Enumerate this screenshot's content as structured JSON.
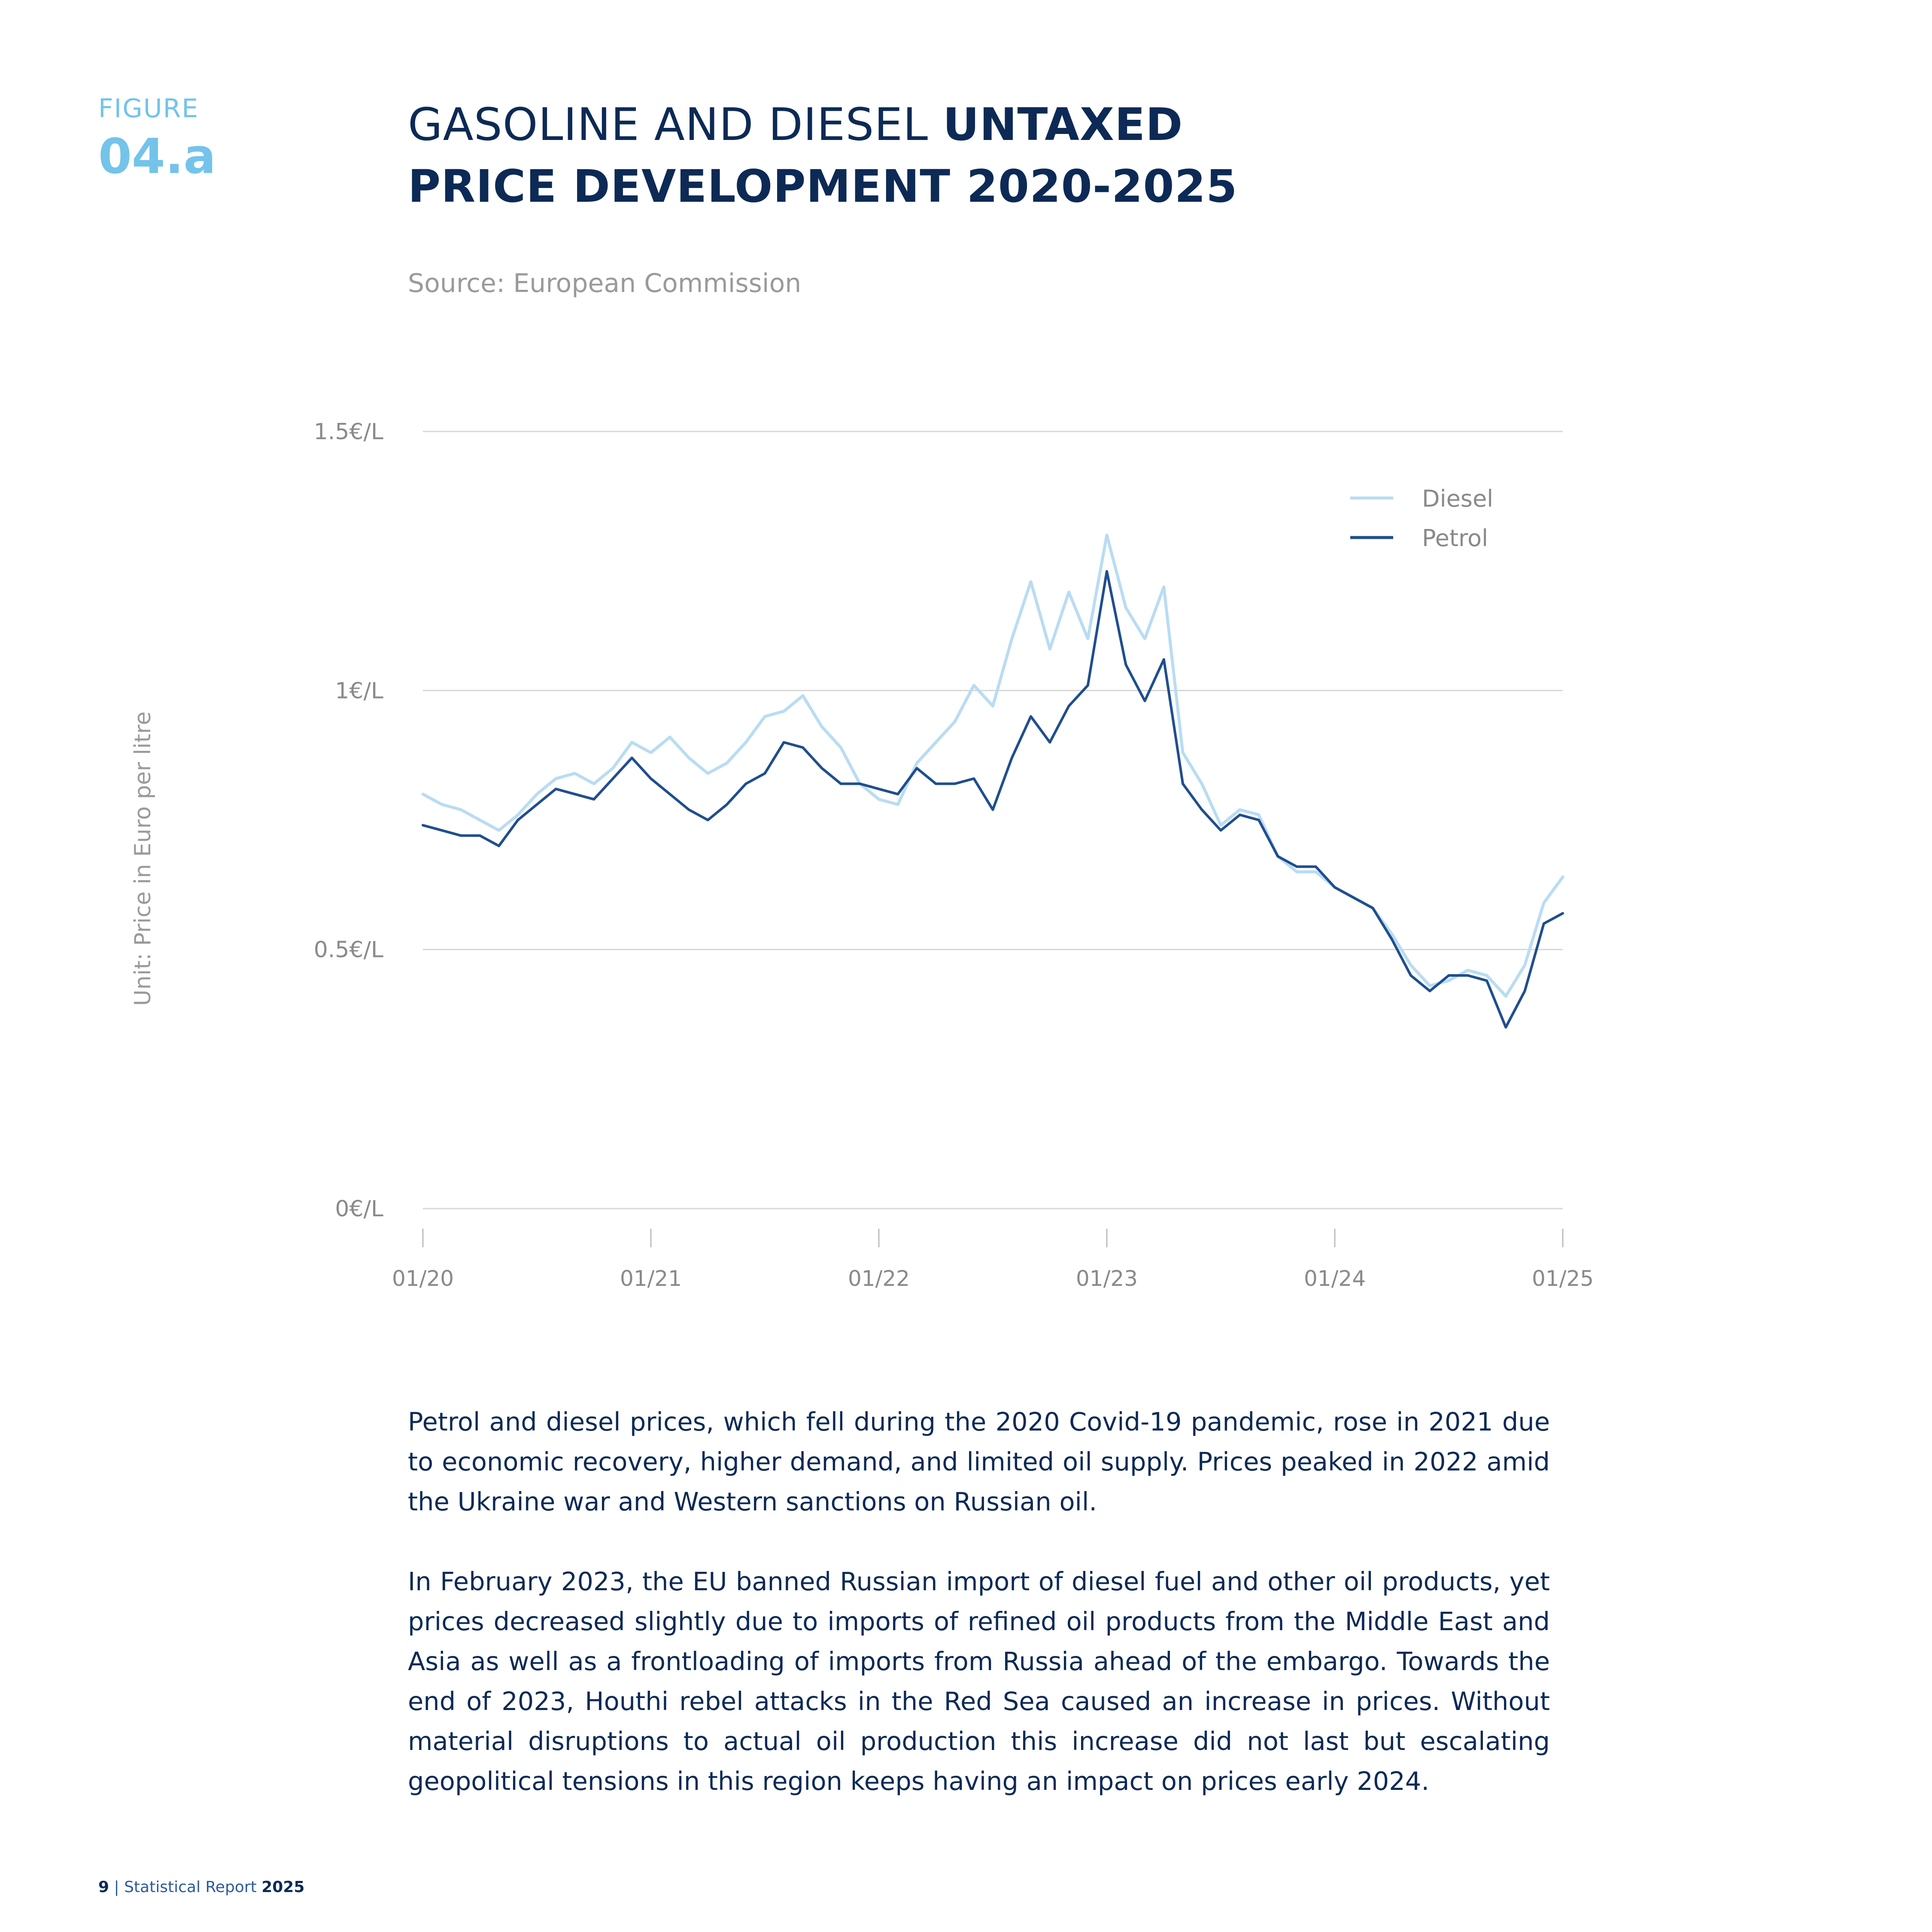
{
  "figure": {
    "label": "FIGURE",
    "number": "04.a"
  },
  "title": {
    "part1": "GASOLINE AND DIESEL ",
    "part2": "UNTAXED",
    "part3": "PRICE DEVELOPMENT 2020-2025"
  },
  "source": "Source: European Commission",
  "chart_data": {
    "type": "line",
    "title": "GASOLINE AND DIESEL UNTAXED PRICE DEVELOPMENT 2020-2025",
    "ylabel": "Unit: Price in Euro per litre",
    "xlabel": "",
    "ylim": [
      0,
      1.5
    ],
    "xlim": [
      "2020-01",
      "2025-01"
    ],
    "y_ticks": [
      {
        "value": 0,
        "label": "0€/L"
      },
      {
        "value": 0.5,
        "label": "0.5€/L"
      },
      {
        "value": 1,
        "label": "1€/L"
      },
      {
        "value": 1.5,
        "label": "1.5€/L"
      }
    ],
    "x_ticks": [
      {
        "value": "2020-01",
        "label": "01/20"
      },
      {
        "value": "2021-01",
        "label": "01/21"
      },
      {
        "value": "2022-01",
        "label": "01/22"
      },
      {
        "value": "2023-01",
        "label": "01/23"
      },
      {
        "value": "2024-01",
        "label": "01/24"
      },
      {
        "value": "2025-01",
        "label": "01/25"
      }
    ],
    "grid": true,
    "legend_position": "top-right",
    "series": [
      {
        "name": "Diesel",
        "color": "#b9dcf3",
        "points": [
          [
            "2020-01",
            0.8
          ],
          [
            "2020-02",
            0.78
          ],
          [
            "2020-03",
            0.77
          ],
          [
            "2020-04",
            0.75
          ],
          [
            "2020-05",
            0.73
          ],
          [
            "2020-06",
            0.76
          ],
          [
            "2020-07",
            0.8
          ],
          [
            "2020-08",
            0.83
          ],
          [
            "2020-09",
            0.84
          ],
          [
            "2020-10",
            0.82
          ],
          [
            "2020-11",
            0.85
          ],
          [
            "2020-12",
            0.9
          ],
          [
            "2021-01",
            0.88
          ],
          [
            "2021-02",
            0.91
          ],
          [
            "2021-03",
            0.87
          ],
          [
            "2021-04",
            0.84
          ],
          [
            "2021-05",
            0.86
          ],
          [
            "2021-06",
            0.9
          ],
          [
            "2021-07",
            0.95
          ],
          [
            "2021-08",
            0.96
          ],
          [
            "2021-09",
            0.99
          ],
          [
            "2021-10",
            0.93
          ],
          [
            "2021-11",
            0.89
          ],
          [
            "2021-12",
            0.82
          ],
          [
            "2022-01",
            0.79
          ],
          [
            "2022-02",
            0.78
          ],
          [
            "2022-03",
            0.86
          ],
          [
            "2022-04",
            0.9
          ],
          [
            "2022-05",
            0.94
          ],
          [
            "2022-06",
            1.01
          ],
          [
            "2022-07",
            0.97
          ],
          [
            "2022-08",
            1.1
          ],
          [
            "2022-09",
            1.21
          ],
          [
            "2022-10",
            1.08
          ],
          [
            "2022-11",
            1.19
          ],
          [
            "2022-12",
            1.1
          ],
          [
            "2023-01",
            1.3
          ],
          [
            "2023-02",
            1.16
          ],
          [
            "2023-03",
            1.1
          ],
          [
            "2023-04",
            1.2
          ],
          [
            "2023-05",
            0.88
          ],
          [
            "2023-06",
            0.82
          ],
          [
            "2023-07",
            0.74
          ],
          [
            "2023-08",
            0.77
          ],
          [
            "2023-09",
            0.76
          ],
          [
            "2023-10",
            0.68
          ],
          [
            "2023-11",
            0.65
          ],
          [
            "2023-12",
            0.65
          ],
          [
            "2024-01",
            0.62
          ],
          [
            "2024-02",
            0.6
          ],
          [
            "2024-03",
            0.58
          ],
          [
            "2024-04",
            0.53
          ],
          [
            "2024-05",
            0.47
          ],
          [
            "2024-06",
            0.43
          ],
          [
            "2024-07",
            0.44
          ],
          [
            "2024-08",
            0.46
          ],
          [
            "2024-09",
            0.45
          ],
          [
            "2024-10",
            0.41
          ],
          [
            "2024-11",
            0.47
          ],
          [
            "2024-12",
            0.59
          ],
          [
            "2025-01",
            0.64
          ]
        ]
      },
      {
        "name": "Petrol",
        "color": "#1f4e8f",
        "points": [
          [
            "2020-01",
            0.74
          ],
          [
            "2020-02",
            0.73
          ],
          [
            "2020-03",
            0.72
          ],
          [
            "2020-04",
            0.72
          ],
          [
            "2020-05",
            0.7
          ],
          [
            "2020-06",
            0.75
          ],
          [
            "2020-07",
            0.78
          ],
          [
            "2020-08",
            0.81
          ],
          [
            "2020-09",
            0.8
          ],
          [
            "2020-10",
            0.79
          ],
          [
            "2020-11",
            0.83
          ],
          [
            "2020-12",
            0.87
          ],
          [
            "2021-01",
            0.83
          ],
          [
            "2021-02",
            0.8
          ],
          [
            "2021-03",
            0.77
          ],
          [
            "2021-04",
            0.75
          ],
          [
            "2021-05",
            0.78
          ],
          [
            "2021-06",
            0.82
          ],
          [
            "2021-07",
            0.84
          ],
          [
            "2021-08",
            0.9
          ],
          [
            "2021-09",
            0.89
          ],
          [
            "2021-10",
            0.85
          ],
          [
            "2021-11",
            0.82
          ],
          [
            "2021-12",
            0.82
          ],
          [
            "2022-01",
            0.81
          ],
          [
            "2022-02",
            0.8
          ],
          [
            "2022-03",
            0.85
          ],
          [
            "2022-04",
            0.82
          ],
          [
            "2022-05",
            0.82
          ],
          [
            "2022-06",
            0.83
          ],
          [
            "2022-07",
            0.77
          ],
          [
            "2022-08",
            0.87
          ],
          [
            "2022-09",
            0.95
          ],
          [
            "2022-10",
            0.9
          ],
          [
            "2022-11",
            0.97
          ],
          [
            "2022-12",
            1.01
          ],
          [
            "2023-01",
            1.23
          ],
          [
            "2023-02",
            1.05
          ],
          [
            "2023-03",
            0.98
          ],
          [
            "2023-04",
            1.06
          ],
          [
            "2023-05",
            0.82
          ],
          [
            "2023-06",
            0.77
          ],
          [
            "2023-07",
            0.73
          ],
          [
            "2023-08",
            0.76
          ],
          [
            "2023-09",
            0.75
          ],
          [
            "2023-10",
            0.68
          ],
          [
            "2023-11",
            0.66
          ],
          [
            "2023-12",
            0.66
          ],
          [
            "2024-01",
            0.62
          ],
          [
            "2024-02",
            0.6
          ],
          [
            "2024-03",
            0.58
          ],
          [
            "2024-04",
            0.52
          ],
          [
            "2024-05",
            0.45
          ],
          [
            "2024-06",
            0.42
          ],
          [
            "2024-07",
            0.45
          ],
          [
            "2024-08",
            0.45
          ],
          [
            "2024-09",
            0.44
          ],
          [
            "2024-10",
            0.35
          ],
          [
            "2024-11",
            0.42
          ],
          [
            "2024-12",
            0.55
          ],
          [
            "2025-01",
            0.57
          ]
        ]
      }
    ]
  },
  "paragraphs": [
    "Petrol and diesel prices, which fell during the 2020 Covid-19 pandemic, rose in 2021 due to economic recovery, higher demand, and limited oil supply. Prices peaked in 2022 amid the Ukraine war and Western sanctions on Russian oil.",
    "In February 2023, the EU banned Russian import of diesel fuel and other oil products, yet prices decreased slightly due to imports of refined oil products from the Middle East and Asia as well as a frontloading of imports from Russia ahead of the embargo. Towards the end of 2023, Houthi rebel attacks in the Red Sea caused an increase in prices. Without material disruptions to actual oil production this increase did not last but escalating geopolitical tensions in this region keeps having an impact on prices early 2024."
  ],
  "footer": {
    "page": "9",
    "separator": " | ",
    "report": "Statistical Report ",
    "year": "2025"
  }
}
